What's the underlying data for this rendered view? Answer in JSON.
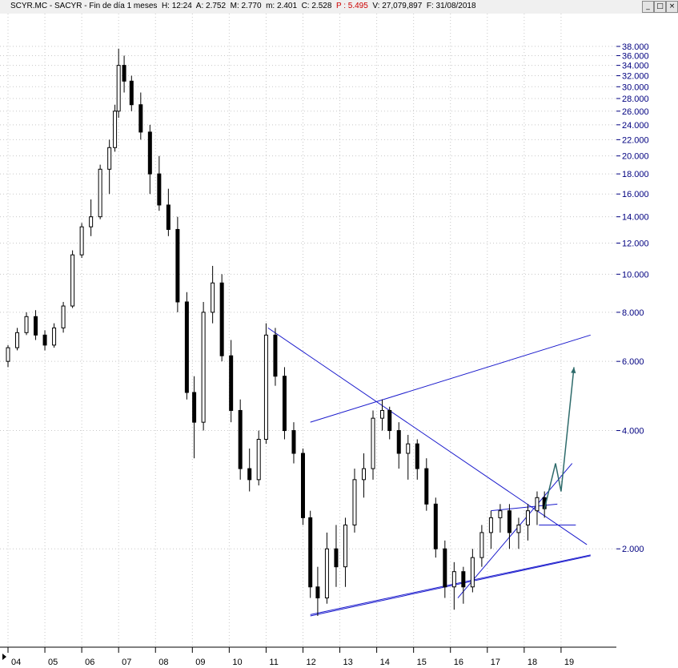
{
  "window": {
    "title_prefix": "SCYR.MC - SACYR - Fin de día 1 meses",
    "H": "H: 12:24",
    "A": "A: 2.752",
    "M": "M: 2.770",
    "m": "m: 2.401",
    "C": "C: 2.528",
    "P": "P : 5.495",
    "V": "V: 27,079,897",
    "F": "F: 31/08/2018",
    "btn_minimize": "_",
    "btn_maximize": "□",
    "btn_close": "×"
  },
  "colors": {
    "candle": "#000000",
    "trendline": "#1a1acc",
    "projection": "#2e6b6b",
    "axis_text": "#000080",
    "grid": "#c8c8c8"
  },
  "chart_data": {
    "type": "candlestick",
    "y_scale": "log",
    "ylim": [
      1.3,
      40.0
    ],
    "y_ticks": [
      {
        "v": 38,
        "label": "38.000"
      },
      {
        "v": 36,
        "label": "36.000"
      },
      {
        "v": 34,
        "label": "34.000"
      },
      {
        "v": 32,
        "label": "32.000"
      },
      {
        "v": 30,
        "label": "30.000"
      },
      {
        "v": 28,
        "label": "28.000"
      },
      {
        "v": 26,
        "label": "26.000"
      },
      {
        "v": 24,
        "label": "24.000"
      },
      {
        "v": 22,
        "label": "22.000"
      },
      {
        "v": 20,
        "label": "20.000"
      },
      {
        "v": 18,
        "label": "18.000"
      },
      {
        "v": 16,
        "label": "16.000"
      },
      {
        "v": 14,
        "label": "14.000"
      },
      {
        "v": 12,
        "label": "12.000"
      },
      {
        "v": 10,
        "label": "10.000"
      },
      {
        "v": 8,
        "label": "8.000"
      },
      {
        "v": 6,
        "label": "6.000"
      },
      {
        "v": 4,
        "label": "4.000"
      },
      {
        "v": 2,
        "label": "2.000"
      }
    ],
    "x_ticks": [
      "04",
      "05",
      "06",
      "07",
      "08",
      "09",
      "10",
      "11",
      "12",
      "13",
      "14",
      "15",
      "16",
      "17",
      "18",
      "19"
    ],
    "x_range": [
      2004.0,
      2020.5
    ],
    "candles": [
      [
        2004.0,
        6.0,
        6.6,
        5.8,
        6.5
      ],
      [
        2004.25,
        6.5,
        7.3,
        6.4,
        7.1
      ],
      [
        2004.5,
        7.1,
        8.0,
        7.0,
        7.8
      ],
      [
        2004.75,
        7.8,
        8.1,
        6.8,
        7.0
      ],
      [
        2005.0,
        7.0,
        7.2,
        6.4,
        6.6
      ],
      [
        2005.25,
        6.6,
        7.5,
        6.5,
        7.3
      ],
      [
        2005.5,
        7.3,
        8.5,
        7.1,
        8.3
      ],
      [
        2005.75,
        8.3,
        11.5,
        8.2,
        11.2
      ],
      [
        2006.0,
        11.2,
        13.5,
        11.0,
        13.2
      ],
      [
        2006.25,
        13.2,
        15.5,
        12.5,
        14.0
      ],
      [
        2006.5,
        14.0,
        19.0,
        13.8,
        18.5
      ],
      [
        2006.75,
        18.5,
        22.0,
        16.0,
        21.0
      ],
      [
        2006.9,
        21.0,
        27.0,
        20.5,
        26.0
      ],
      [
        2007.0,
        26.0,
        37.5,
        25.0,
        34.0
      ],
      [
        2007.15,
        34.0,
        36.0,
        29.0,
        31.0
      ],
      [
        2007.35,
        31.0,
        32.0,
        26.0,
        27.0
      ],
      [
        2007.6,
        27.0,
        29.0,
        22.0,
        23.0
      ],
      [
        2007.85,
        23.0,
        24.0,
        16.0,
        18.0
      ],
      [
        2008.1,
        18.0,
        20.0,
        14.5,
        15.0
      ],
      [
        2008.35,
        15.0,
        16.5,
        12.5,
        13.0
      ],
      [
        2008.6,
        13.0,
        14.0,
        8.0,
        8.5
      ],
      [
        2008.85,
        8.5,
        9.0,
        4.8,
        5.0
      ],
      [
        2009.05,
        5.0,
        5.5,
        3.4,
        4.2
      ],
      [
        2009.3,
        4.2,
        8.5,
        4.0,
        8.0
      ],
      [
        2009.55,
        8.0,
        10.5,
        7.5,
        9.5
      ],
      [
        2009.8,
        9.5,
        10.0,
        6.0,
        6.2
      ],
      [
        2010.05,
        6.2,
        6.8,
        4.2,
        4.5
      ],
      [
        2010.3,
        4.5,
        4.8,
        3.0,
        3.2
      ],
      [
        2010.55,
        3.2,
        3.6,
        2.8,
        3.0
      ],
      [
        2010.8,
        3.0,
        4.0,
        2.9,
        3.8
      ],
      [
        2011.0,
        3.8,
        7.5,
        3.7,
        7.0
      ],
      [
        2011.25,
        7.0,
        7.3,
        5.2,
        5.5
      ],
      [
        2011.5,
        5.5,
        5.8,
        3.8,
        4.0
      ],
      [
        2011.75,
        4.0,
        4.2,
        3.3,
        3.5
      ],
      [
        2012.0,
        3.5,
        3.6,
        2.3,
        2.4
      ],
      [
        2012.2,
        2.4,
        2.5,
        1.5,
        1.6
      ],
      [
        2012.4,
        1.6,
        1.8,
        1.35,
        1.5
      ],
      [
        2012.65,
        1.5,
        2.2,
        1.45,
        2.0
      ],
      [
        2012.9,
        2.0,
        2.3,
        1.6,
        1.8
      ],
      [
        2013.15,
        1.8,
        2.4,
        1.6,
        2.3
      ],
      [
        2013.4,
        2.3,
        3.2,
        2.2,
        3.0
      ],
      [
        2013.65,
        3.0,
        3.5,
        2.7,
        3.2
      ],
      [
        2013.9,
        3.2,
        4.5,
        3.0,
        4.3
      ],
      [
        2014.15,
        4.3,
        4.8,
        4.0,
        4.5
      ],
      [
        2014.35,
        4.5,
        4.6,
        3.8,
        4.0
      ],
      [
        2014.6,
        4.0,
        4.2,
        3.2,
        3.5
      ],
      [
        2014.85,
        3.5,
        3.9,
        3.0,
        3.7
      ],
      [
        2015.1,
        3.7,
        3.8,
        3.0,
        3.2
      ],
      [
        2015.35,
        3.2,
        3.4,
        2.5,
        2.6
      ],
      [
        2015.6,
        2.6,
        2.7,
        1.9,
        2.0
      ],
      [
        2015.85,
        2.0,
        2.1,
        1.5,
        1.6
      ],
      [
        2016.1,
        1.6,
        1.85,
        1.4,
        1.75
      ],
      [
        2016.35,
        1.75,
        1.8,
        1.45,
        1.6
      ],
      [
        2016.6,
        1.6,
        2.0,
        1.55,
        1.9
      ],
      [
        2016.85,
        1.9,
        2.3,
        1.8,
        2.2
      ],
      [
        2017.1,
        2.2,
        2.5,
        2.0,
        2.4
      ],
      [
        2017.35,
        2.4,
        2.6,
        2.2,
        2.5
      ],
      [
        2017.6,
        2.5,
        2.6,
        2.0,
        2.2
      ],
      [
        2017.85,
        2.2,
        2.4,
        2.0,
        2.3
      ],
      [
        2018.1,
        2.3,
        2.6,
        2.1,
        2.5
      ],
      [
        2018.35,
        2.5,
        2.8,
        2.3,
        2.7
      ],
      [
        2018.55,
        2.7,
        2.8,
        2.4,
        2.53
      ]
    ],
    "trendlines": [
      {
        "from": [
          2011.05,
          7.3
        ],
        "to": [
          2019.7,
          2.05
        ]
      },
      {
        "from": [
          2012.2,
          1.35
        ],
        "to": [
          2019.8,
          1.92
        ]
      },
      {
        "from": [
          2012.2,
          1.36
        ],
        "to": [
          2019.8,
          1.93
        ]
      },
      {
        "from": [
          2016.2,
          1.5
        ],
        "to": [
          2019.3,
          3.3
        ]
      },
      {
        "from": [
          2012.2,
          4.2
        ],
        "to": [
          2019.8,
          7.0
        ]
      },
      {
        "from": [
          2017.1,
          2.5
        ],
        "to": [
          2018.9,
          2.6
        ]
      },
      {
        "from": [
          2018.4,
          2.3
        ],
        "to": [
          2019.4,
          2.3
        ]
      }
    ],
    "projection": [
      [
        2018.55,
        2.53
      ],
      [
        2018.85,
        3.3
      ],
      [
        2019.0,
        2.8
      ],
      [
        2019.35,
        5.8
      ]
    ]
  }
}
